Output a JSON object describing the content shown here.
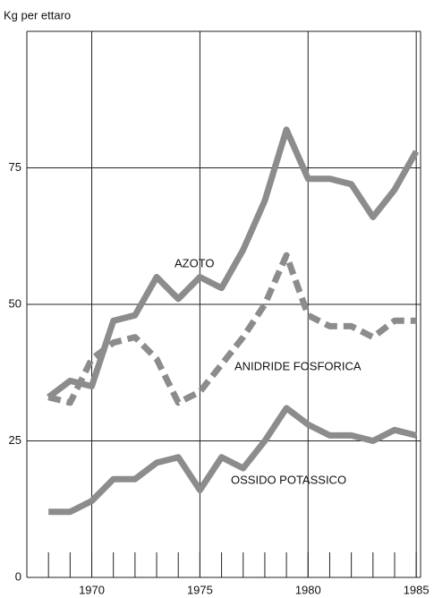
{
  "chart_data": {
    "type": "line",
    "y_axis_label": "Kg per ettaro",
    "x": [
      1968,
      1969,
      1970,
      1971,
      1972,
      1973,
      1974,
      1975,
      1976,
      1977,
      1978,
      1979,
      1980,
      1981,
      1982,
      1983,
      1984,
      1985
    ],
    "series": [
      {
        "name": "AZOTO",
        "color": "#8c8c8c",
        "dashed": false,
        "values": [
          33,
          36,
          35,
          47,
          48,
          55,
          51,
          55,
          53,
          60,
          69,
          82,
          73,
          73,
          72,
          66,
          71,
          78
        ]
      },
      {
        "name": "ANIDRIDE FOSFORICA",
        "color": "#8c8c8c",
        "dashed": true,
        "values": [
          33,
          32,
          40,
          43,
          44,
          40,
          32,
          34,
          39,
          44,
          50,
          59,
          48,
          46,
          46,
          44,
          47,
          47
        ]
      },
      {
        "name": "OSSIDO POTASSICO",
        "color": "#8c8c8c",
        "dashed": false,
        "values": [
          12,
          12,
          14,
          18,
          18,
          21,
          22,
          16,
          22,
          20,
          25,
          31,
          28,
          26,
          26,
          25,
          27,
          26
        ]
      }
    ],
    "xlim": [
      1967,
      1985.2
    ],
    "ylim": [
      0,
      100
    ],
    "xticks": [
      1970,
      1975,
      1980,
      1985
    ],
    "xminorticks": [
      1968,
      1969,
      1970,
      1971,
      1972,
      1973,
      1974,
      1975,
      1976,
      1977,
      1978,
      1979,
      1980,
      1981,
      1982,
      1983,
      1984,
      1985
    ],
    "yticks": [
      0,
      25,
      50,
      75
    ],
    "grid": true
  }
}
